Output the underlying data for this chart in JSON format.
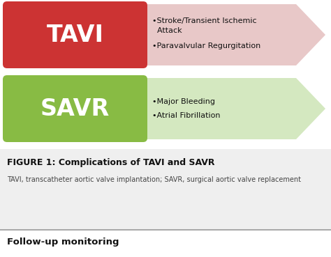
{
  "bg_color": "#ffffff",
  "arrow1_color": "#e8c8c8",
  "arrow2_color": "#d4e8c0",
  "box1_color": "#cc3333",
  "box2_color": "#88bb44",
  "box1_label": "TAVI",
  "box2_label": "SAVR",
  "box1_bullets_line1": "•Stroke/Transient Ischemic",
  "box1_bullets_line2": "  Attack",
  "box1_bullets_line3": "•Paravalvular Regurgitation",
  "box2_bullets_line1": "•Major Bleeding",
  "box2_bullets_line2": "•Atrial Fibrillation",
  "figure_title": "FIGURE 1: Complications of TAVI and SAVR",
  "figure_subtitle": "TAVI, transcatheter aortic valve implantation; SAVR, surgical aortic valve replacement",
  "footer_text": "Follow-up monitoring",
  "light_gray": "#efefef",
  "separator_color": "#999999",
  "text_dark": "#111111",
  "text_mid": "#444444"
}
